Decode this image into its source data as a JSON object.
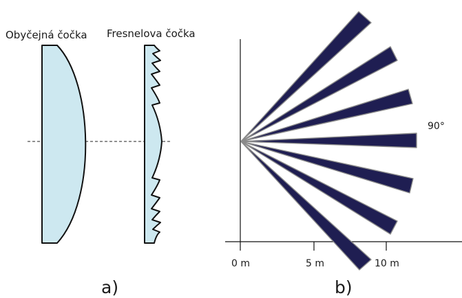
{
  "panel_a": {
    "label": "a)",
    "ordinary_lens_title": "Obyčejná čočka",
    "fresnel_lens_title": "Fresnelova čočka"
  },
  "panel_b": {
    "label": "b)",
    "angle_label": "90°",
    "beam_count": 7,
    "axis_ticks": [
      {
        "label": "0 m",
        "distance_m": 0
      },
      {
        "label": "5 m",
        "distance_m": 5
      },
      {
        "label": "10 m",
        "distance_m": 10
      }
    ]
  },
  "colors": {
    "lens_fill": "#cde8f0",
    "beam_fill": "#1f1e52",
    "beam_outline": "#8a8a8a",
    "line": "#111111"
  }
}
